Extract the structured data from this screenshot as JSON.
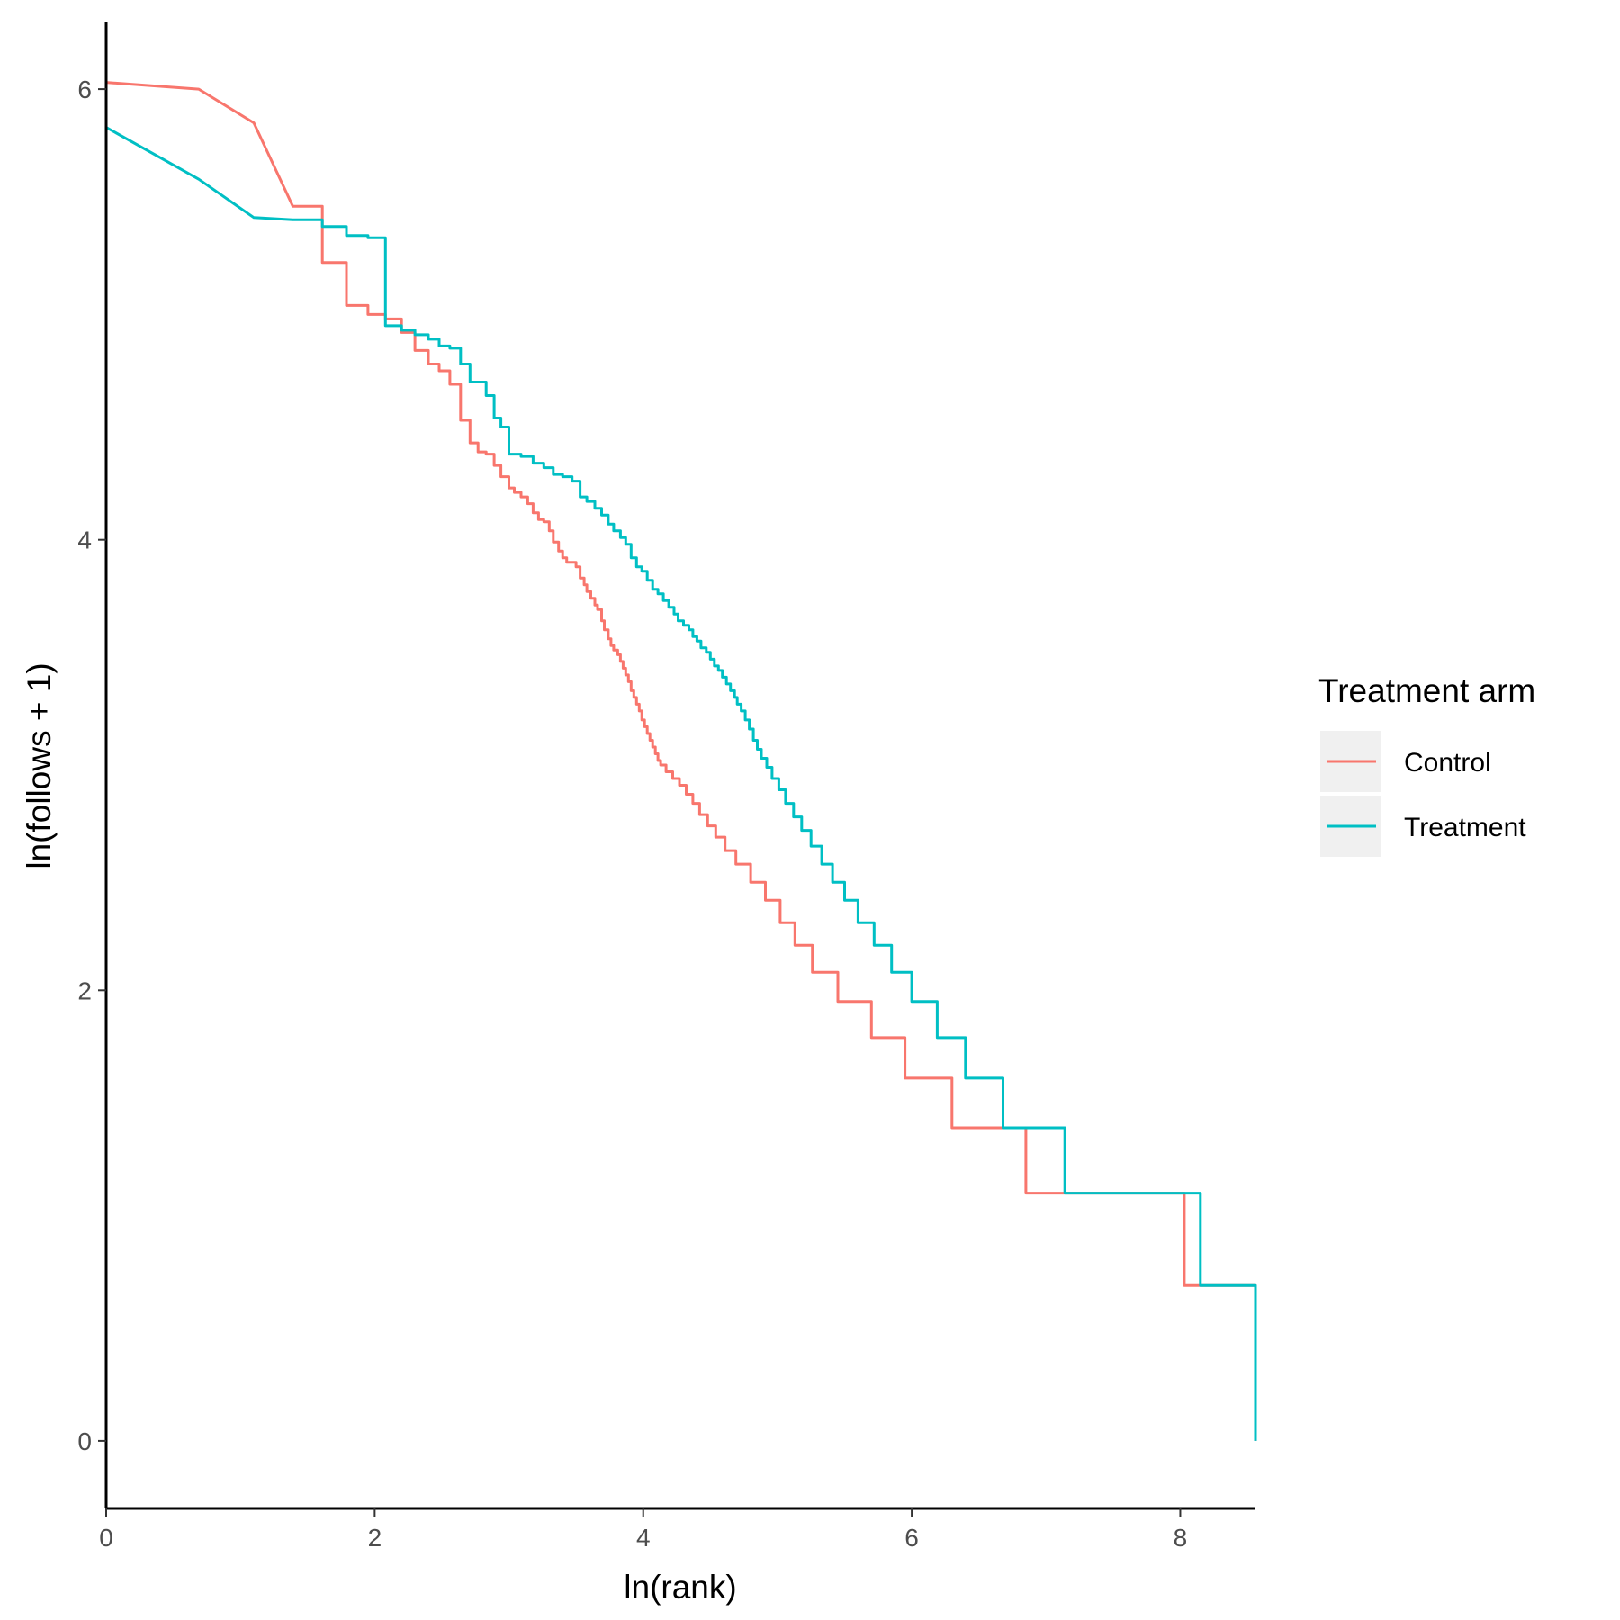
{
  "chart_data": {
    "type": "line",
    "title": "",
    "xlabel": "ln(rank)",
    "ylabel": "ln(follows + 1)",
    "xlim": [
      0,
      8.56
    ],
    "ylim": [
      -0.3,
      6.3
    ],
    "xticks": [
      0,
      2,
      4,
      6,
      8
    ],
    "yticks": [
      0,
      2,
      4,
      6
    ],
    "grid": false,
    "legend": {
      "title": "Treatment arm",
      "position": "right"
    },
    "series": [
      {
        "name": "Control",
        "color": "#F8766D",
        "points": [
          [
            0,
            6.03
          ],
          [
            0.69,
            6.0
          ],
          [
            1.1,
            5.85
          ],
          [
            1.39,
            5.48
          ],
          [
            1.61,
            5.23
          ],
          [
            1.79,
            5.04
          ],
          [
            1.95,
            5.0
          ],
          [
            2.08,
            4.98
          ],
          [
            2.2,
            4.92
          ],
          [
            2.3,
            4.84
          ],
          [
            2.4,
            4.78
          ],
          [
            2.48,
            4.75
          ],
          [
            2.56,
            4.69
          ],
          [
            2.64,
            4.53
          ],
          [
            2.71,
            4.43
          ],
          [
            2.77,
            4.39
          ],
          [
            2.83,
            4.38
          ],
          [
            2.89,
            4.33
          ],
          [
            2.94,
            4.28
          ],
          [
            3.0,
            4.23
          ],
          [
            3.04,
            4.21
          ],
          [
            3.09,
            4.19
          ],
          [
            3.14,
            4.16
          ],
          [
            3.18,
            4.12
          ],
          [
            3.22,
            4.09
          ],
          [
            3.26,
            4.08
          ],
          [
            3.3,
            4.04
          ],
          [
            3.33,
            3.99
          ],
          [
            3.37,
            3.95
          ],
          [
            3.4,
            3.92
          ],
          [
            3.43,
            3.9
          ],
          [
            3.47,
            3.9
          ],
          [
            3.5,
            3.88
          ],
          [
            3.53,
            3.83
          ],
          [
            3.56,
            3.8
          ],
          [
            3.58,
            3.77
          ],
          [
            3.61,
            3.74
          ],
          [
            3.64,
            3.71
          ],
          [
            3.66,
            3.69
          ],
          [
            3.69,
            3.64
          ],
          [
            3.71,
            3.6
          ],
          [
            3.74,
            3.56
          ],
          [
            3.76,
            3.53
          ],
          [
            3.78,
            3.51
          ],
          [
            3.81,
            3.49
          ],
          [
            3.83,
            3.46
          ],
          [
            3.85,
            3.43
          ],
          [
            3.87,
            3.4
          ],
          [
            3.89,
            3.37
          ],
          [
            3.91,
            3.33
          ],
          [
            3.93,
            3.3
          ],
          [
            3.95,
            3.27
          ],
          [
            3.97,
            3.24
          ],
          [
            3.99,
            3.2
          ],
          [
            4.01,
            3.17
          ],
          [
            4.03,
            3.14
          ],
          [
            4.05,
            3.11
          ],
          [
            4.07,
            3.08
          ],
          [
            4.09,
            3.05
          ],
          [
            4.11,
            3.02
          ],
          [
            4.13,
            3.0
          ],
          [
            4.17,
            2.97
          ],
          [
            4.22,
            2.94
          ],
          [
            4.27,
            2.91
          ],
          [
            4.32,
            2.87
          ],
          [
            4.37,
            2.83
          ],
          [
            4.42,
            2.78
          ],
          [
            4.48,
            2.73
          ],
          [
            4.54,
            2.68
          ],
          [
            4.61,
            2.62
          ],
          [
            4.69,
            2.56
          ],
          [
            4.8,
            2.48
          ],
          [
            4.91,
            2.4
          ],
          [
            5.02,
            2.3
          ],
          [
            5.13,
            2.2
          ],
          [
            5.26,
            2.08
          ],
          [
            5.45,
            1.95
          ],
          [
            5.7,
            1.79
          ],
          [
            5.95,
            1.61
          ],
          [
            6.3,
            1.39
          ],
          [
            6.85,
            1.1
          ],
          [
            8.03,
            0.69
          ],
          [
            8.56,
            0.0
          ]
        ]
      },
      {
        "name": "Treatment",
        "color": "#00BFC4",
        "points": [
          [
            0,
            5.83
          ],
          [
            0.69,
            5.6
          ],
          [
            1.1,
            5.43
          ],
          [
            1.39,
            5.42
          ],
          [
            1.61,
            5.39
          ],
          [
            1.79,
            5.35
          ],
          [
            1.95,
            5.34
          ],
          [
            2.08,
            4.95
          ],
          [
            2.2,
            4.93
          ],
          [
            2.3,
            4.91
          ],
          [
            2.4,
            4.89
          ],
          [
            2.48,
            4.86
          ],
          [
            2.56,
            4.85
          ],
          [
            2.64,
            4.78
          ],
          [
            2.71,
            4.7
          ],
          [
            2.77,
            4.7
          ],
          [
            2.83,
            4.64
          ],
          [
            2.89,
            4.54
          ],
          [
            2.94,
            4.5
          ],
          [
            3.0,
            4.38
          ],
          [
            3.09,
            4.37
          ],
          [
            3.18,
            4.34
          ],
          [
            3.26,
            4.32
          ],
          [
            3.33,
            4.29
          ],
          [
            3.4,
            4.28
          ],
          [
            3.47,
            4.26
          ],
          [
            3.53,
            4.19
          ],
          [
            3.58,
            4.17
          ],
          [
            3.64,
            4.14
          ],
          [
            3.69,
            4.11
          ],
          [
            3.74,
            4.07
          ],
          [
            3.78,
            4.04
          ],
          [
            3.83,
            4.01
          ],
          [
            3.87,
            3.98
          ],
          [
            3.91,
            3.92
          ],
          [
            3.95,
            3.88
          ],
          [
            3.99,
            3.86
          ],
          [
            4.03,
            3.82
          ],
          [
            4.07,
            3.78
          ],
          [
            4.11,
            3.76
          ],
          [
            4.15,
            3.73
          ],
          [
            4.19,
            3.7
          ],
          [
            4.23,
            3.67
          ],
          [
            4.26,
            3.64
          ],
          [
            4.3,
            3.62
          ],
          [
            4.34,
            3.6
          ],
          [
            4.37,
            3.57
          ],
          [
            4.4,
            3.55
          ],
          [
            4.43,
            3.52
          ],
          [
            4.47,
            3.5
          ],
          [
            4.5,
            3.47
          ],
          [
            4.53,
            3.44
          ],
          [
            4.56,
            3.42
          ],
          [
            4.59,
            3.39
          ],
          [
            4.62,
            3.36
          ],
          [
            4.65,
            3.33
          ],
          [
            4.68,
            3.3
          ],
          [
            4.7,
            3.27
          ],
          [
            4.73,
            3.24
          ],
          [
            4.76,
            3.2
          ],
          [
            4.79,
            3.16
          ],
          [
            4.82,
            3.11
          ],
          [
            4.85,
            3.07
          ],
          [
            4.88,
            3.03
          ],
          [
            4.92,
            2.99
          ],
          [
            4.96,
            2.94
          ],
          [
            5.01,
            2.89
          ],
          [
            5.06,
            2.83
          ],
          [
            5.12,
            2.77
          ],
          [
            5.18,
            2.71
          ],
          [
            5.25,
            2.64
          ],
          [
            5.33,
            2.56
          ],
          [
            5.41,
            2.48
          ],
          [
            5.5,
            2.4
          ],
          [
            5.6,
            2.3
          ],
          [
            5.72,
            2.2
          ],
          [
            5.85,
            2.08
          ],
          [
            6.0,
            1.95
          ],
          [
            6.19,
            1.79
          ],
          [
            6.4,
            1.61
          ],
          [
            6.68,
            1.39
          ],
          [
            7.14,
            1.1
          ],
          [
            8.15,
            0.69
          ],
          [
            8.56,
            0.0
          ]
        ]
      }
    ]
  }
}
